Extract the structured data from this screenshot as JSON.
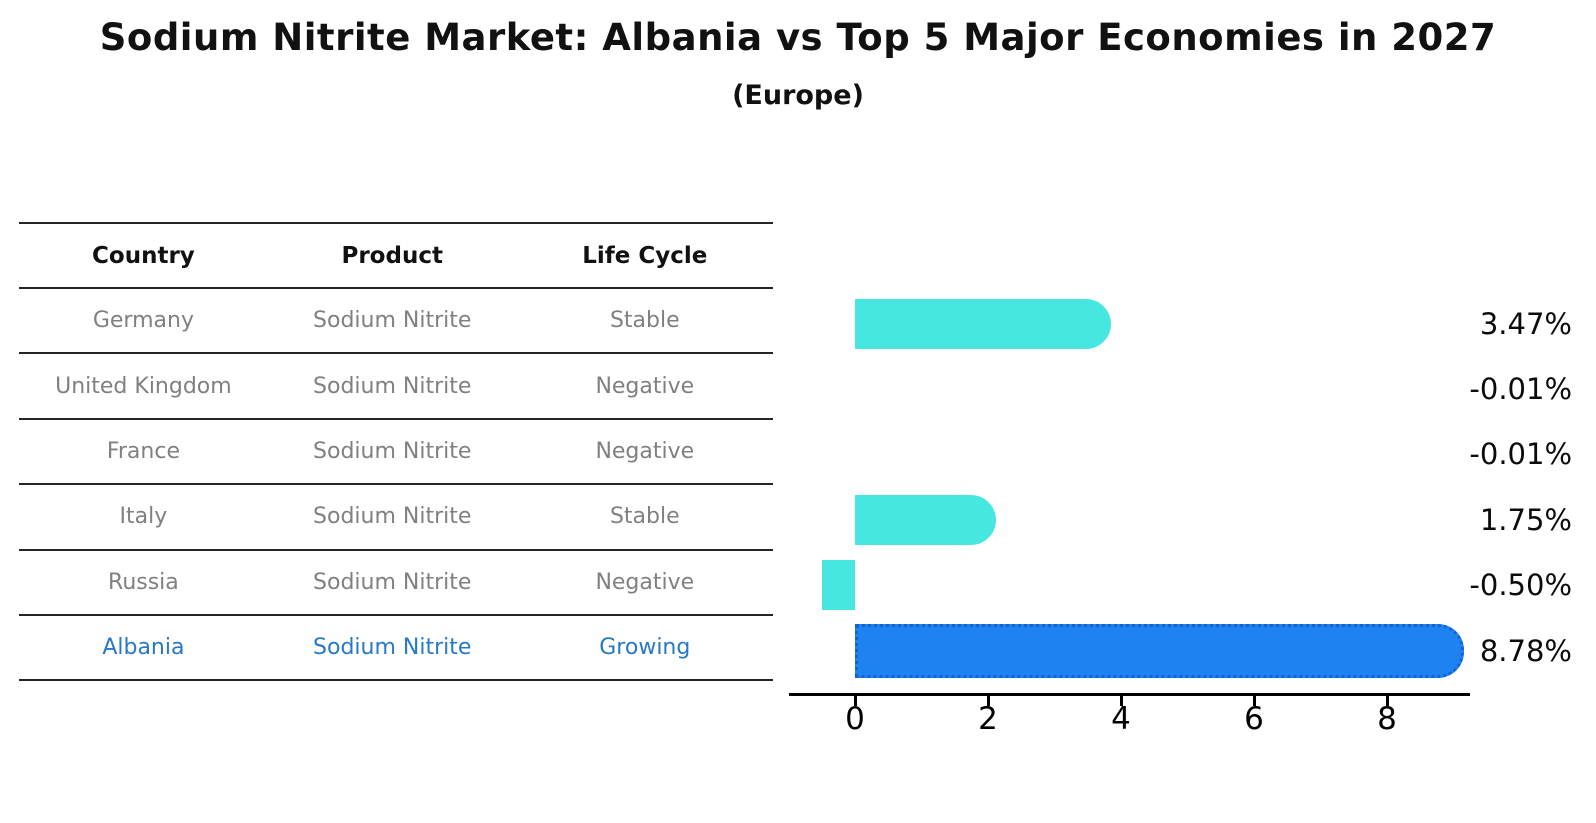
{
  "title": "Sodium Nitrite Market: Albania vs Top 5 Major Economies in 2027",
  "subtitle": "(Europe)",
  "table": {
    "headers": [
      "Country",
      "Product",
      "Life Cycle"
    ],
    "rows": [
      {
        "country": "Germany",
        "product": "Sodium Nitrite",
        "life_cycle": "Stable",
        "highlight": false
      },
      {
        "country": "United Kingdom",
        "product": "Sodium Nitrite",
        "life_cycle": "Negative",
        "highlight": false
      },
      {
        "country": "France",
        "product": "Sodium Nitrite",
        "life_cycle": "Negative",
        "highlight": false
      },
      {
        "country": "Italy",
        "product": "Sodium Nitrite",
        "life_cycle": "Stable",
        "highlight": false
      },
      {
        "country": "Russia",
        "product": "Sodium Nitrite",
        "life_cycle": "Negative",
        "highlight": false
      },
      {
        "country": "Albania",
        "product": "Sodium Nitrite",
        "life_cycle": "Growing",
        "highlight": true
      }
    ]
  },
  "chart_data": {
    "type": "bar",
    "orientation": "horizontal",
    "title": "Sodium Nitrite Market: Albania vs Top 5 Major Economies in 2027",
    "subtitle": "(Europe)",
    "categories": [
      "Germany",
      "United Kingdom",
      "France",
      "Italy",
      "Russia",
      "Albania"
    ],
    "values": [
      3.47,
      -0.01,
      -0.01,
      1.75,
      -0.5,
      8.78
    ],
    "value_labels": [
      "3.47%",
      "-0.01%",
      "-0.01%",
      "1.75%",
      "-0.50%",
      "8.78%"
    ],
    "unit": "%",
    "xticks": [
      0,
      2,
      4,
      6,
      8
    ],
    "xlim": [
      -1.0,
      9.25
    ],
    "grid": false,
    "legend": false,
    "bar_color": "#46E6E1",
    "highlight_bar_color": "#1E82F0",
    "highlight_border_color": "#1563CE",
    "highlight_index": 5
  }
}
